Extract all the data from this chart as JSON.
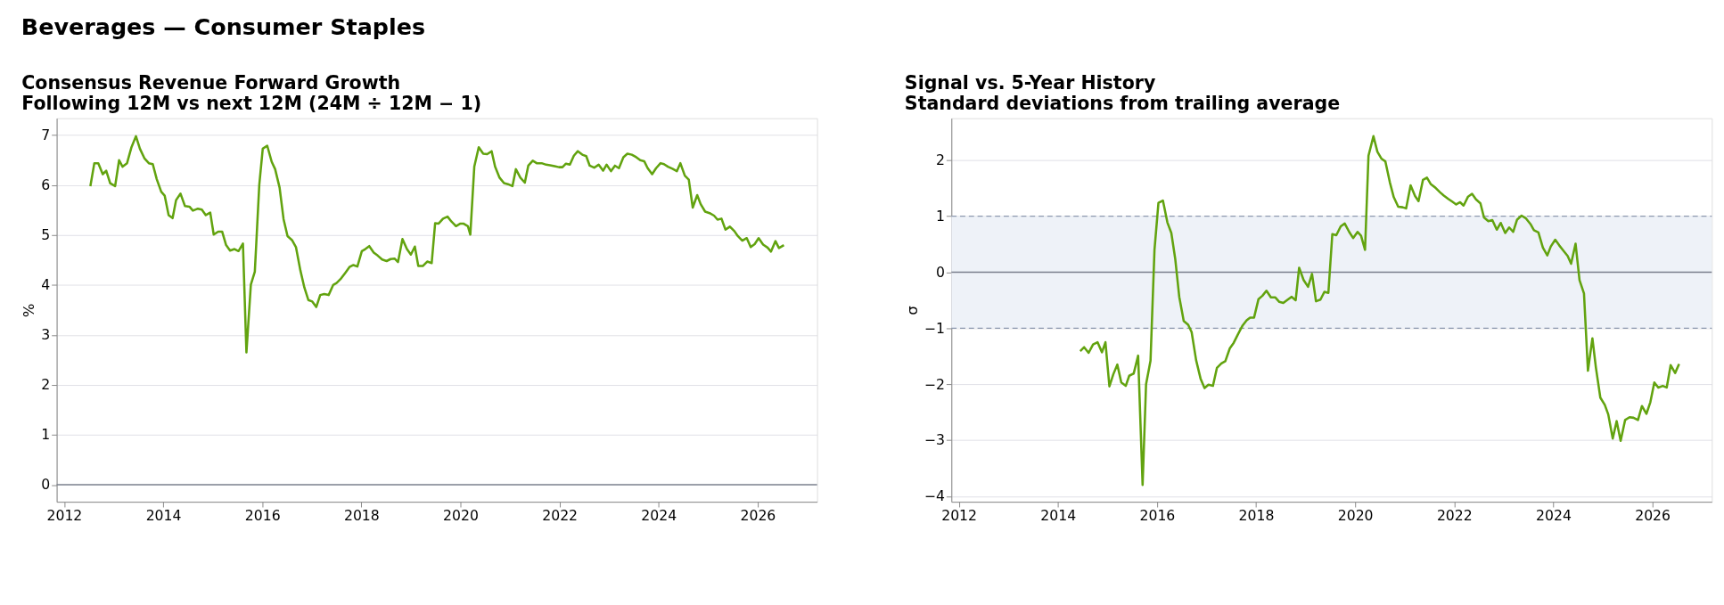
{
  "chart_data": [
    {
      "type": "line",
      "title": "Consensus Revenue Forward Growth",
      "subtitle": "Following 12M vs next 12M (24M ÷ 12M − 1)",
      "annotations": [
        "Beverages — Consumer Staples"
      ],
      "ylabel": "%",
      "x": [
        2012.53,
        2012.61,
        2012.69,
        2012.78,
        2012.85,
        2012.93,
        2013.03,
        2013.11,
        2013.18,
        2013.27,
        2013.36,
        2013.45,
        2013.53,
        2013.62,
        2013.71,
        2013.79,
        2013.87,
        2013.96,
        2014.03,
        2014.11,
        2014.19,
        2014.26,
        2014.35,
        2014.44,
        2014.53,
        2014.6,
        2014.7,
        2014.78,
        2014.86,
        2014.95,
        2015.02,
        2015.11,
        2015.19,
        2015.27,
        2015.35,
        2015.44,
        2015.52,
        2015.61,
        2015.68,
        2015.77,
        2015.85,
        2015.94,
        2016.01,
        2016.1,
        2016.19,
        2016.26,
        2016.35,
        2016.43,
        2016.51,
        2016.6,
        2016.68,
        2016.77,
        2016.85,
        2016.93,
        2017.01,
        2017.09,
        2017.17,
        2017.25,
        2017.34,
        2017.43,
        2017.5,
        2017.59,
        2017.68,
        2017.76,
        2017.84,
        2017.92,
        2018.01,
        2018.08,
        2018.16,
        2018.25,
        2018.33,
        2018.42,
        2018.51,
        2018.59,
        2018.67,
        2018.74,
        2018.83,
        2018.92,
        2019.0,
        2019.08,
        2019.15,
        2019.24,
        2019.33,
        2019.42,
        2019.49,
        2019.56,
        2019.65,
        2019.74,
        2019.82,
        2019.91,
        2020.0,
        2020.06,
        2020.15,
        2020.2,
        2020.28,
        2020.37,
        2020.46,
        2020.54,
        2020.63,
        2020.7,
        2020.79,
        2020.88,
        2020.96,
        2021.05,
        2021.12,
        2021.21,
        2021.3,
        2021.37,
        2021.46,
        2021.54,
        2021.64,
        2021.73,
        2021.81,
        2021.9,
        2021.99,
        2022.06,
        2022.13,
        2022.21,
        2022.29,
        2022.37,
        2022.46,
        2022.54,
        2022.61,
        2022.7,
        2022.79,
        2022.88,
        2022.95,
        2023.04,
        2023.12,
        2023.2,
        2023.29,
        2023.37,
        2023.46,
        2023.55,
        2023.63,
        2023.71,
        2023.78,
        2023.87,
        2023.95,
        2024.04,
        2024.11,
        2024.19,
        2024.28,
        2024.37,
        2024.44,
        2024.53,
        2024.61,
        2024.69,
        2024.78,
        2024.85,
        2024.94,
        2025.03,
        2025.12,
        2025.19,
        2025.27,
        2025.35,
        2025.44,
        2025.53,
        2025.6,
        2025.69,
        2025.78,
        2025.86,
        2025.94,
        2026.02,
        2026.11,
        2026.2,
        2026.27,
        2026.36,
        2026.43,
        2026.53
      ],
      "series": [
        {
          "color": "#62a30f",
          "values": [
            5.98,
            6.44,
            6.44,
            6.22,
            6.29,
            6.04,
            5.98,
            6.5,
            6.37,
            6.44,
            6.76,
            6.98,
            6.73,
            6.54,
            6.44,
            6.42,
            6.12,
            5.87,
            5.79,
            5.4,
            5.34,
            5.7,
            5.83,
            5.58,
            5.57,
            5.49,
            5.53,
            5.51,
            5.4,
            5.45,
            5.01,
            5.07,
            5.07,
            4.8,
            4.69,
            4.72,
            4.68,
            4.83,
            2.65,
            4.01,
            4.27,
            6.01,
            6.73,
            6.79,
            6.47,
            6.32,
            5.95,
            5.32,
            4.98,
            4.9,
            4.76,
            4.29,
            3.95,
            3.7,
            3.67,
            3.56,
            3.8,
            3.82,
            3.8,
            4.0,
            4.04,
            4.13,
            4.25,
            4.36,
            4.4,
            4.37,
            4.68,
            4.72,
            4.78,
            4.65,
            4.59,
            4.51,
            4.48,
            4.52,
            4.53,
            4.46,
            4.92,
            4.72,
            4.61,
            4.77,
            4.38,
            4.38,
            4.47,
            4.44,
            5.24,
            5.23,
            5.33,
            5.37,
            5.27,
            5.18,
            5.23,
            5.23,
            5.18,
            5.01,
            6.37,
            6.76,
            6.63,
            6.62,
            6.68,
            6.37,
            6.15,
            6.04,
            6.02,
            5.98,
            6.32,
            6.15,
            6.05,
            6.39,
            6.49,
            6.44,
            6.44,
            6.41,
            6.4,
            6.38,
            6.36,
            6.36,
            6.43,
            6.41,
            6.59,
            6.68,
            6.61,
            6.58,
            6.39,
            6.35,
            6.41,
            6.29,
            6.41,
            6.28,
            6.39,
            6.34,
            6.56,
            6.63,
            6.61,
            6.56,
            6.5,
            6.48,
            6.34,
            6.22,
            6.34,
            6.44,
            6.42,
            6.37,
            6.33,
            6.28,
            6.44,
            6.19,
            6.11,
            5.55,
            5.8,
            5.62,
            5.47,
            5.44,
            5.39,
            5.31,
            5.33,
            5.11,
            5.17,
            5.08,
            4.98,
            4.89,
            4.94,
            4.76,
            4.82,
            4.94,
            4.81,
            4.75,
            4.67,
            4.88,
            4.74,
            4.8
          ]
        }
      ],
      "xlim": [
        2011.85,
        2027.2
      ],
      "xticks": [
        2012,
        2014,
        2016,
        2018,
        2020,
        2022,
        2024,
        2026
      ],
      "ylim": [
        -0.34,
        7.34
      ],
      "yticks": [
        0,
        1,
        2,
        3,
        4,
        5,
        6,
        7
      ],
      "grid": "y",
      "ref_lines": [
        {
          "axis": "y",
          "value": 0,
          "color": "#7a7f8c"
        }
      ]
    },
    {
      "type": "line",
      "title": "Signal vs. 5-Year History",
      "subtitle": "Standard deviations from trailing average",
      "ylabel": "σ",
      "x": [
        2014.45,
        2014.53,
        2014.62,
        2014.71,
        2014.8,
        2014.89,
        2014.96,
        2015.04,
        2015.12,
        2015.2,
        2015.28,
        2015.37,
        2015.44,
        2015.53,
        2015.62,
        2015.71,
        2015.78,
        2015.87,
        2015.95,
        2016.03,
        2016.12,
        2016.21,
        2016.29,
        2016.37,
        2016.45,
        2016.54,
        2016.63,
        2016.7,
        2016.79,
        2016.88,
        2016.96,
        2017.04,
        2017.13,
        2017.21,
        2017.3,
        2017.38,
        2017.47,
        2017.55,
        2017.64,
        2017.73,
        2017.81,
        2017.88,
        2017.96,
        2018.05,
        2018.13,
        2018.21,
        2018.3,
        2018.39,
        2018.47,
        2018.55,
        2018.64,
        2018.72,
        2018.8,
        2018.87,
        2018.96,
        2019.05,
        2019.13,
        2019.21,
        2019.3,
        2019.38,
        2019.46,
        2019.54,
        2019.62,
        2019.71,
        2019.79,
        2019.88,
        2019.96,
        2020.05,
        2020.12,
        2020.2,
        2020.27,
        2020.37,
        2020.45,
        2020.53,
        2020.61,
        2020.7,
        2020.78,
        2020.87,
        2020.96,
        2021.03,
        2021.12,
        2021.21,
        2021.28,
        2021.37,
        2021.45,
        2021.53,
        2021.62,
        2021.71,
        2021.79,
        2021.88,
        2021.96,
        2022.04,
        2022.12,
        2022.19,
        2022.28,
        2022.36,
        2022.44,
        2022.53,
        2022.6,
        2022.69,
        2022.77,
        2022.86,
        2022.94,
        2023.03,
        2023.11,
        2023.19,
        2023.27,
        2023.36,
        2023.45,
        2023.54,
        2023.61,
        2023.7,
        2023.79,
        2023.88,
        2023.95,
        2024.04,
        2024.12,
        2024.2,
        2024.29,
        2024.36,
        2024.45,
        2024.53,
        2024.62,
        2024.7,
        2024.79,
        2024.86,
        2024.95,
        2025.04,
        2025.11,
        2025.2,
        2025.28,
        2025.36,
        2025.45,
        2025.54,
        2025.62,
        2025.71,
        2025.79,
        2025.88,
        2025.96,
        2026.04,
        2026.12,
        2026.21,
        2026.29,
        2026.37,
        2026.46,
        2026.54
      ],
      "series": [
        {
          "color": "#62a30f",
          "values": [
            -1.41,
            -1.34,
            -1.44,
            -1.29,
            -1.25,
            -1.43,
            -1.25,
            -2.04,
            -1.82,
            -1.65,
            -1.97,
            -2.03,
            -1.85,
            -1.81,
            -1.49,
            -3.8,
            -2.0,
            -1.58,
            0.4,
            1.24,
            1.28,
            0.89,
            0.7,
            0.23,
            -0.44,
            -0.87,
            -0.94,
            -1.07,
            -1.57,
            -1.9,
            -2.07,
            -2.01,
            -2.03,
            -1.71,
            -1.63,
            -1.59,
            -1.36,
            -1.26,
            -1.1,
            -0.95,
            -0.86,
            -0.81,
            -0.81,
            -0.48,
            -0.42,
            -0.33,
            -0.45,
            -0.45,
            -0.53,
            -0.55,
            -0.49,
            -0.44,
            -0.5,
            0.08,
            -0.14,
            -0.26,
            -0.03,
            -0.52,
            -0.49,
            -0.35,
            -0.37,
            0.68,
            0.66,
            0.82,
            0.87,
            0.72,
            0.61,
            0.72,
            0.65,
            0.4,
            2.08,
            2.43,
            2.15,
            2.03,
            1.98,
            1.61,
            1.34,
            1.17,
            1.16,
            1.14,
            1.55,
            1.36,
            1.27,
            1.65,
            1.69,
            1.57,
            1.51,
            1.43,
            1.37,
            1.31,
            1.26,
            1.21,
            1.25,
            1.19,
            1.35,
            1.4,
            1.3,
            1.23,
            0.98,
            0.91,
            0.93,
            0.76,
            0.88,
            0.7,
            0.8,
            0.72,
            0.94,
            1.01,
            0.96,
            0.86,
            0.75,
            0.71,
            0.44,
            0.3,
            0.46,
            0.58,
            0.48,
            0.39,
            0.29,
            0.15,
            0.51,
            -0.14,
            -0.38,
            -1.76,
            -1.18,
            -1.7,
            -2.24,
            -2.37,
            -2.54,
            -2.97,
            -2.66,
            -3.01,
            -2.64,
            -2.59,
            -2.6,
            -2.64,
            -2.39,
            -2.53,
            -2.32,
            -1.97,
            -2.06,
            -2.03,
            -2.06,
            -1.66,
            -1.8,
            -1.64
          ]
        }
      ],
      "xlim": [
        2011.85,
        2027.2
      ],
      "xticks": [
        2012,
        2014,
        2016,
        2018,
        2020,
        2022,
        2024,
        2026
      ],
      "ylim": [
        -4.1,
        2.75
      ],
      "yticks": [
        -4,
        -3,
        -2,
        -1,
        0,
        1,
        2
      ],
      "grid": "y",
      "bands": [
        {
          "axis": "y",
          "from": -1,
          "to": 1,
          "color": "#eef2f8"
        }
      ],
      "ref_lines": [
        {
          "axis": "y",
          "value": 0,
          "color": "#7a7f8c"
        }
      ]
    }
  ]
}
